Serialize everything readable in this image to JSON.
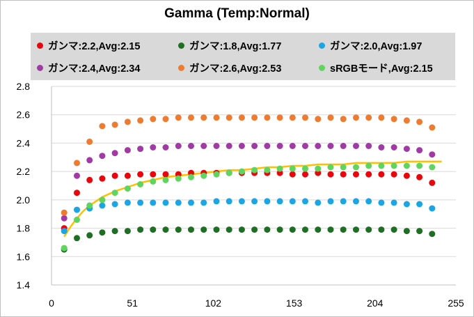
{
  "chart_data": {
    "type": "scatter",
    "title": "Gamma (Temp:Normal)",
    "xlim": [
      0,
      255
    ],
    "ylim": [
      1.4,
      2.8
    ],
    "xticks": [
      0,
      51,
      102,
      153,
      204,
      255
    ],
    "yticks": [
      "1.4",
      "1.6",
      "1.8",
      "2.0",
      "2.2",
      "2.4",
      "2.6",
      "2.8"
    ],
    "grid": "horizontal",
    "legend_position": "top",
    "x": [
      8,
      16,
      24,
      32,
      40,
      48,
      56,
      64,
      72,
      80,
      88,
      96,
      104,
      112,
      120,
      128,
      136,
      144,
      152,
      160,
      168,
      176,
      184,
      192,
      200,
      208,
      216,
      224,
      232,
      240
    ],
    "series": [
      {
        "name": "ガンマ:2.2,Avg:2.15",
        "color": "#e8060c",
        "values": [
          1.8,
          2.05,
          2.14,
          2.15,
          2.17,
          2.17,
          2.18,
          2.18,
          2.18,
          2.18,
          2.19,
          2.19,
          2.19,
          2.19,
          2.19,
          2.19,
          2.19,
          2.19,
          2.18,
          2.18,
          2.19,
          2.18,
          2.18,
          2.18,
          2.18,
          2.18,
          2.18,
          2.17,
          2.16,
          2.12
        ]
      },
      {
        "name": "ガンマ:1.8,Avg:1.77",
        "color": "#1e6e23",
        "values": [
          1.65,
          1.73,
          1.75,
          1.77,
          1.78,
          1.78,
          1.79,
          1.79,
          1.79,
          1.79,
          1.79,
          1.79,
          1.79,
          1.79,
          1.79,
          1.79,
          1.79,
          1.79,
          1.79,
          1.79,
          1.79,
          1.79,
          1.79,
          1.79,
          1.79,
          1.79,
          1.79,
          1.78,
          1.78,
          1.76
        ]
      },
      {
        "name": "ガンマ:2.0,Avg:1.97",
        "color": "#1ca5e4",
        "values": [
          1.78,
          1.93,
          1.94,
          1.96,
          1.97,
          1.98,
          1.98,
          1.98,
          1.98,
          1.98,
          1.98,
          1.98,
          1.99,
          1.99,
          1.99,
          1.99,
          1.99,
          1.99,
          1.99,
          1.99,
          1.98,
          1.99,
          1.99,
          1.99,
          1.99,
          1.98,
          1.98,
          1.97,
          1.97,
          1.94
        ]
      },
      {
        "name": "ガンマ:2.4,Avg:2.34",
        "color": "#a23aa6",
        "values": [
          1.87,
          2.17,
          2.28,
          2.31,
          2.33,
          2.35,
          2.36,
          2.37,
          2.37,
          2.38,
          2.38,
          2.38,
          2.38,
          2.38,
          2.38,
          2.38,
          2.38,
          2.38,
          2.38,
          2.38,
          2.38,
          2.38,
          2.38,
          2.38,
          2.38,
          2.37,
          2.37,
          2.36,
          2.35,
          2.32
        ]
      },
      {
        "name": "ガンマ:2.6,Avg:2.53",
        "color": "#ee7b30",
        "values": [
          1.91,
          2.26,
          2.41,
          2.52,
          2.53,
          2.55,
          2.56,
          2.57,
          2.57,
          2.58,
          2.58,
          2.58,
          2.58,
          2.58,
          2.58,
          2.58,
          2.58,
          2.58,
          2.58,
          2.58,
          2.57,
          2.58,
          2.57,
          2.58,
          2.58,
          2.58,
          2.57,
          2.56,
          2.55,
          2.51
        ]
      },
      {
        "name": "sRGBモード,Avg:2.15",
        "color": "#5fd45f",
        "values": [
          1.66,
          1.86,
          1.96,
          2.0,
          2.05,
          2.08,
          2.11,
          2.13,
          2.14,
          2.15,
          2.16,
          2.17,
          2.18,
          2.19,
          2.2,
          2.21,
          2.21,
          2.22,
          2.22,
          2.22,
          2.22,
          2.23,
          2.23,
          2.23,
          2.24,
          2.24,
          2.24,
          2.24,
          2.24,
          2.23
        ]
      }
    ],
    "reference_curve": {
      "color": "#ffc000",
      "x": [
        8,
        12,
        16,
        20,
        24,
        28,
        32,
        40,
        48,
        56,
        64,
        72,
        80,
        88,
        96,
        104,
        112,
        120,
        128,
        136,
        144,
        152,
        160,
        168,
        176,
        184,
        192,
        200,
        208,
        216,
        224,
        232,
        240,
        246
      ],
      "values": [
        1.74,
        1.81,
        1.87,
        1.92,
        1.96,
        1.99,
        2.02,
        2.06,
        2.09,
        2.12,
        2.14,
        2.16,
        2.17,
        2.18,
        2.19,
        2.2,
        2.21,
        2.21,
        2.22,
        2.23,
        2.23,
        2.24,
        2.24,
        2.25,
        2.25,
        2.25,
        2.26,
        2.26,
        2.26,
        2.26,
        2.27,
        2.27,
        2.27,
        2.27
      ]
    }
  }
}
